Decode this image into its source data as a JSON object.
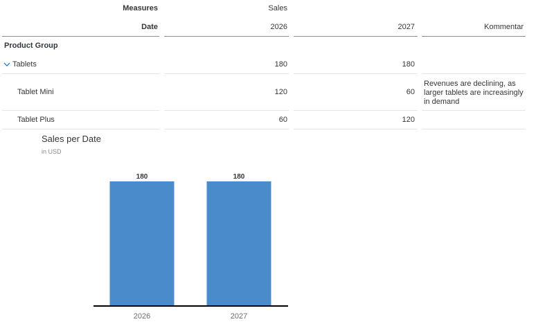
{
  "table": {
    "headers": {
      "measures_label": "Measures",
      "measures_value": "Sales",
      "date_label": "Date",
      "col_2026": "2026",
      "col_2027": "2027",
      "comment_col": "Kommentar"
    },
    "product_group_label": "Product Group",
    "rows": [
      {
        "name": "Tablets",
        "v2026": "180",
        "v2027": "180",
        "comment": ""
      },
      {
        "name": "Tablet Mini",
        "v2026": "120",
        "v2027": "60",
        "comment": "Revenues are declining, as larger tablets are increasingly in demand"
      },
      {
        "name": "Tablet Plus",
        "v2026": "60",
        "v2027": "120",
        "comment": ""
      }
    ]
  },
  "colors": {
    "bar": "#4a8bcb",
    "axis": "#000000"
  },
  "chart_data": {
    "type": "bar",
    "title": "Sales per Date",
    "subtitle": "in USD",
    "categories": [
      "2026",
      "2027"
    ],
    "values": [
      180,
      180
    ],
    "data_labels": [
      "180",
      "180"
    ],
    "ylim": [
      0,
      180
    ],
    "grid": false,
    "legend": "none"
  }
}
